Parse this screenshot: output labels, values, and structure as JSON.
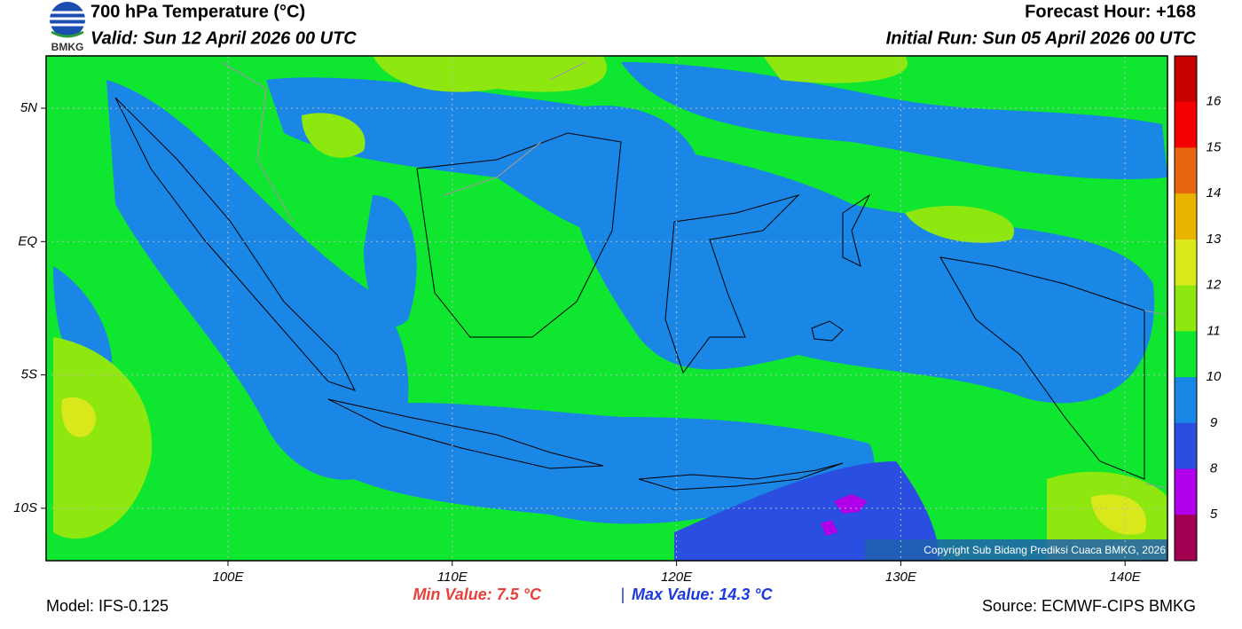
{
  "header": {
    "logo": "BMKG",
    "title": "700 hPa Temperature (°C)",
    "valid": "Valid: Sun 12 April 2026 00 UTC",
    "forecast_hour": "Forecast Hour: +168",
    "initial_run": "Initial Run: Sun 05 April 2026 00 UTC"
  },
  "map": {
    "lat_labels": [
      "5N",
      "EQ",
      "5S",
      "10S"
    ],
    "lon_labels": [
      "100E",
      "110E",
      "120E",
      "130E",
      "140E"
    ],
    "copyright": "Copyright Sub Bidang Prediksi Cuaca BMKG, 2026"
  },
  "colorbar": {
    "labels": [
      16,
      15,
      14,
      13,
      12,
      11,
      10,
      9,
      8,
      5
    ],
    "colors": [
      "#c40000",
      "#f50000",
      "#e8650f",
      "#e8b400",
      "#d9e81a",
      "#8ee80f",
      "#0ee630",
      "#1a86e6",
      "#2a4fe0",
      "#b000ea",
      "#a0004f"
    ]
  },
  "footer": {
    "model": "Model: IFS-0.125",
    "min_value": "Min Value: 7.5 °C",
    "separator": "|",
    "max_value": "Max Value: 14.3 °C",
    "source": "Source: ECMWF-CIPS BMKG"
  }
}
